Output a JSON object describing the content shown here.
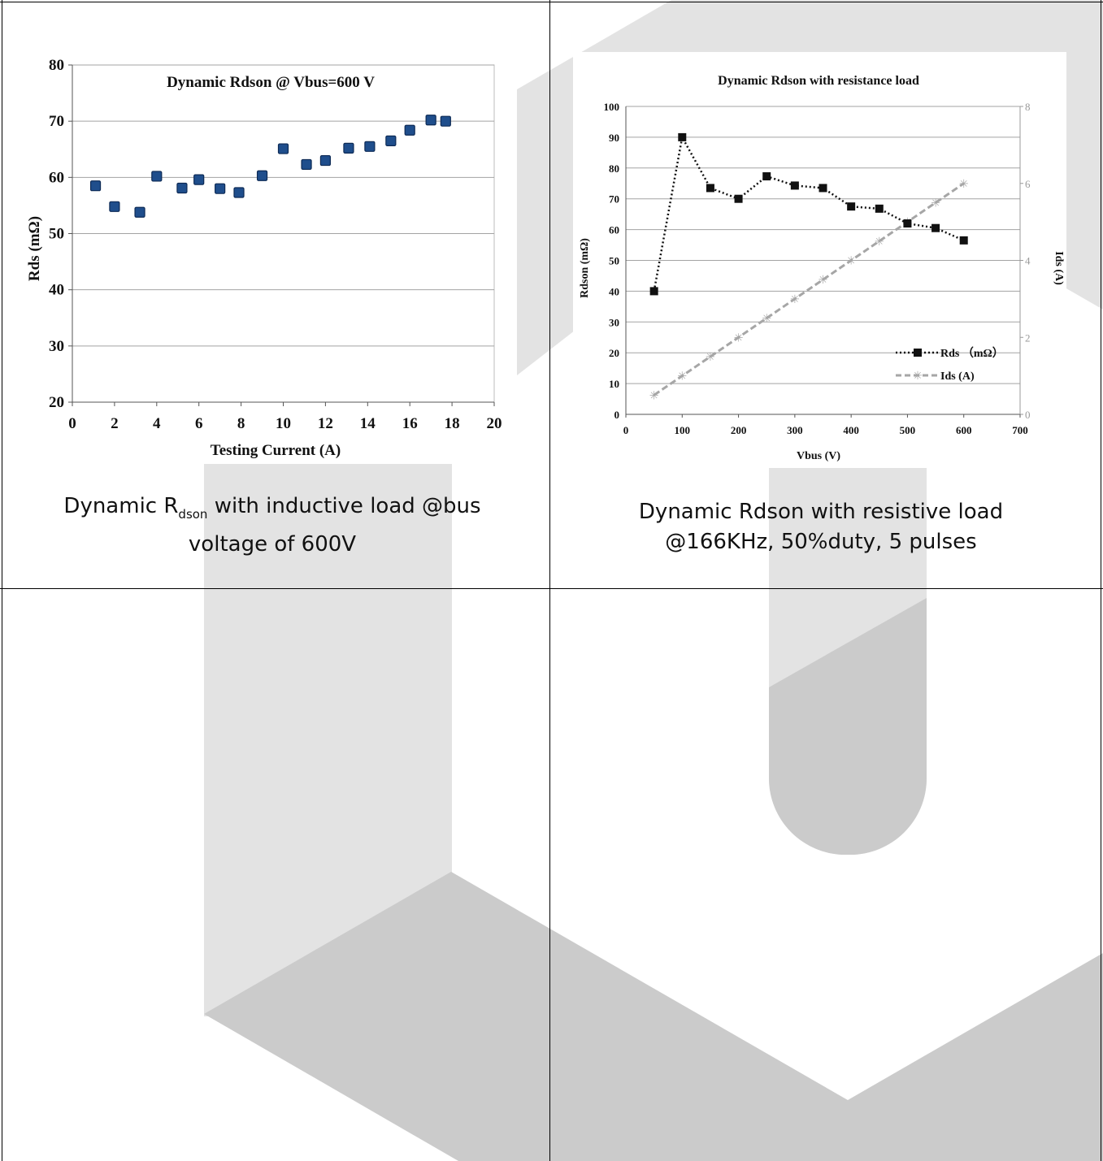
{
  "charts": {
    "inductive": {
      "title": "Dynamic Rdson @ Vbus=600 V",
      "xlabel": "Testing Current (A)",
      "ylabel": "Rds (mΩ)"
    },
    "resistive": {
      "title": "Dynamic Rdson with resistance load",
      "xlabel": "Vbus (V)",
      "ylabel": "Rdson (mΩ)",
      "ylabel_right": "Ids (A)",
      "legend_rds": "Rds （mΩ）",
      "legend_ids": "Ids (A)"
    }
  },
  "captions": {
    "left_main": "Dynamic R",
    "left_sub": "dson",
    "left_rest": " with inductive load @bus voltage of 600V",
    "right": "Dynamic Rdson with resistive load @166KHz, 50%duty, 5 pulses"
  },
  "colors": {
    "marker_blue": "#1f4e8c",
    "marker_blue_edge": "#0d2a55",
    "rds_line": "#111111",
    "ids_line": "#a6a6a6",
    "watermark_light": "#e3e3e3",
    "watermark_dark": "#cbcbcb"
  },
  "chart_data": [
    {
      "type": "scatter",
      "title": "Dynamic Rdson @ Vbus=600 V",
      "xlabel": "Testing Current (A)",
      "ylabel": "Rds (mΩ)",
      "xlim": [
        0,
        20
      ],
      "ylim": [
        20,
        80
      ],
      "xticks": [
        0,
        2,
        4,
        6,
        8,
        10,
        12,
        14,
        16,
        18,
        20
      ],
      "yticks": [
        20,
        30,
        40,
        50,
        60,
        70,
        80
      ],
      "grid": true,
      "series": [
        {
          "x": [
            1.1,
            2.0,
            3.2,
            4.0,
            5.2,
            6.0,
            7.0,
            7.9,
            9.0,
            10.0,
            11.1,
            12.0,
            13.1,
            14.1,
            15.1,
            16.0,
            17.0,
            17.7
          ],
          "y": [
            58.5,
            54.8,
            53.8,
            60.2,
            58.1,
            59.6,
            58.0,
            57.3,
            60.3,
            65.1,
            62.3,
            63.0,
            65.2,
            65.5,
            66.5,
            68.4,
            70.2,
            70.0
          ]
        }
      ]
    },
    {
      "type": "line",
      "title": "Dynamic Rdson with resistance load",
      "xlabel": "Vbus (V)",
      "ylabel": "Rdson (mΩ)",
      "ylabel_right": "Ids (A)",
      "xlim": [
        0,
        700
      ],
      "ylim": [
        0,
        100
      ],
      "ylim_right": [
        0,
        8
      ],
      "xticks": [
        0,
        100,
        200,
        300,
        400,
        500,
        600,
        700
      ],
      "yticks": [
        0,
        10,
        20,
        30,
        40,
        50,
        60,
        70,
        80,
        90,
        100
      ],
      "yticks_right": [
        0,
        2,
        4,
        6,
        8
      ],
      "grid": true,
      "legend": "lower-right",
      "x": [
        50,
        100,
        150,
        200,
        250,
        300,
        350,
        400,
        450,
        500,
        550,
        600
      ],
      "series": [
        {
          "name": "Rds （mΩ）",
          "axis": "left",
          "values": [
            40,
            90,
            73.5,
            70,
            77.3,
            74.3,
            73.5,
            67.5,
            66.8,
            62,
            60.5,
            56.5
          ]
        },
        {
          "name": "Ids (A)",
          "axis": "right",
          "values": [
            0.5,
            1.0,
            1.5,
            2.0,
            2.5,
            3.0,
            3.5,
            4.0,
            4.5,
            5.0,
            5.5,
            6.0
          ]
        }
      ]
    }
  ]
}
